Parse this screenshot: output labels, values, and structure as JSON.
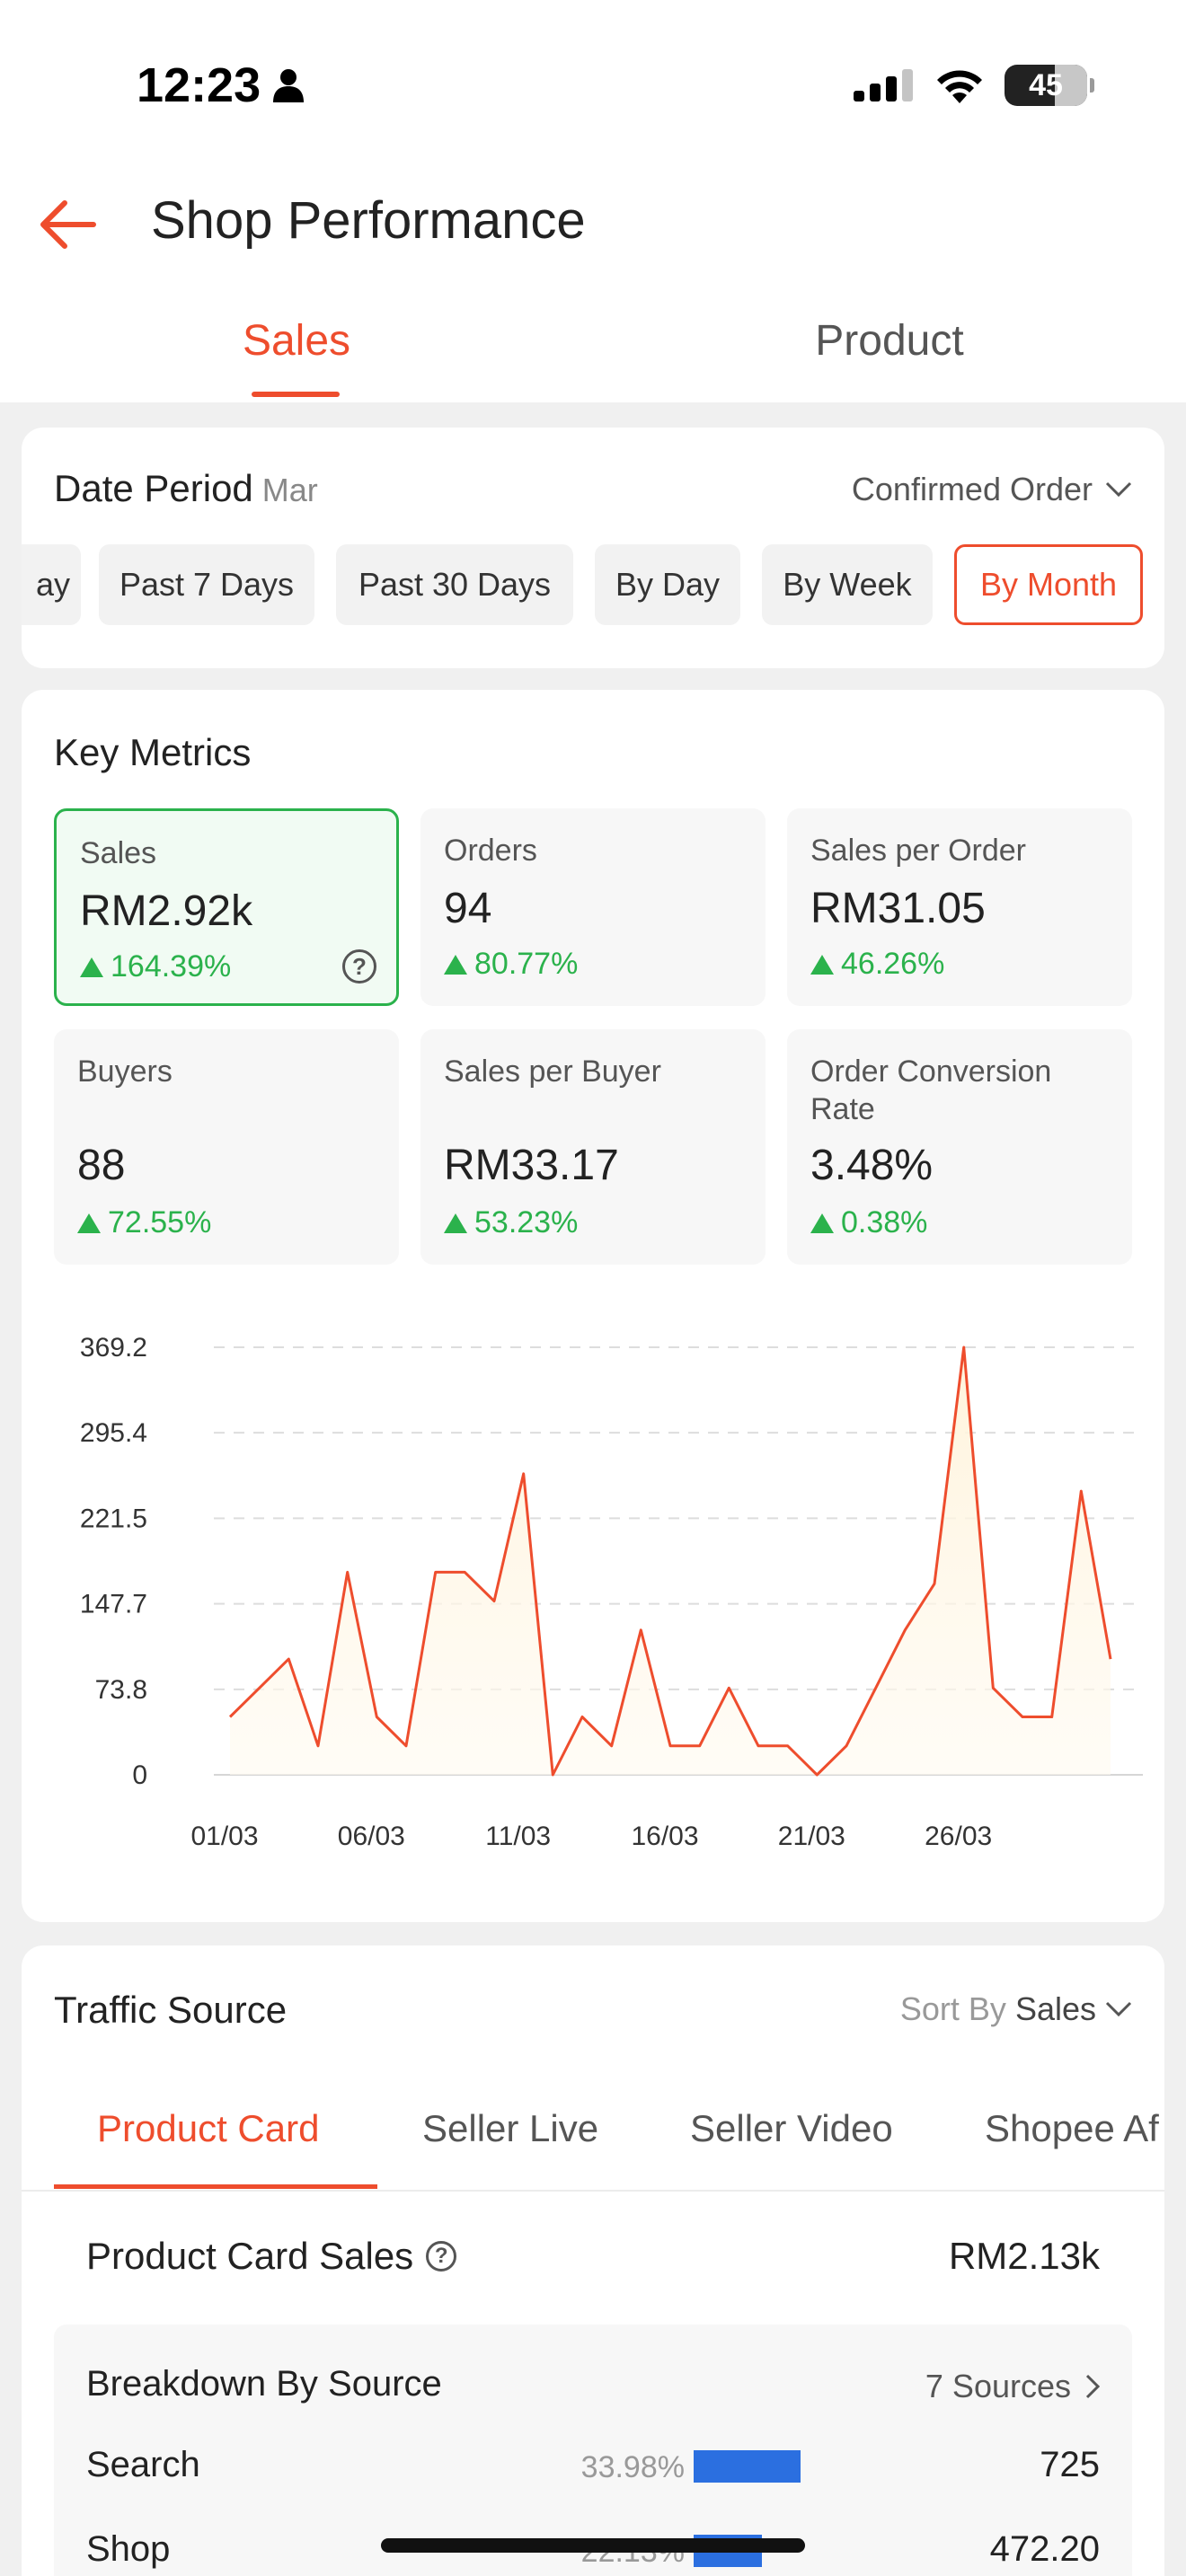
{
  "status_bar": {
    "time": "12:23",
    "battery": "45"
  },
  "header": {
    "title": "Shop Performance"
  },
  "tabs": [
    {
      "label": "Sales",
      "active": true
    },
    {
      "label": "Product",
      "active": false
    }
  ],
  "date_period": {
    "title": "Date Period",
    "month": "Mar",
    "order_type": "Confirmed Order",
    "chips": [
      {
        "label": "ay",
        "active": false
      },
      {
        "label": "Past 7 Days",
        "active": false
      },
      {
        "label": "Past 30 Days",
        "active": false
      },
      {
        "label": "By Day",
        "active": false
      },
      {
        "label": "By Week",
        "active": false
      },
      {
        "label": "By Month",
        "active": true
      }
    ]
  },
  "key_metrics": {
    "title": "Key Metrics",
    "items": [
      {
        "label": "Sales",
        "value": "RM2.92k",
        "change": "164.39%",
        "selected": true
      },
      {
        "label": "Orders",
        "value": "94",
        "change": "80.77%"
      },
      {
        "label": "Sales per Order",
        "value": "RM31.05",
        "change": "46.26%"
      },
      {
        "label": "Buyers",
        "value": "88",
        "change": "72.55%"
      },
      {
        "label": "Sales per Buyer",
        "value": "RM33.17",
        "change": "53.23%"
      },
      {
        "label": "Order Conversion Rate",
        "value": "3.48%",
        "change": "0.38%"
      }
    ]
  },
  "chart_data": {
    "type": "area",
    "x": [
      "01/03",
      "02/03",
      "03/03",
      "04/03",
      "05/03",
      "06/03",
      "07/03",
      "08/03",
      "09/03",
      "10/03",
      "11/03",
      "12/03",
      "13/03",
      "14/03",
      "15/03",
      "16/03",
      "17/03",
      "18/03",
      "19/03",
      "20/03",
      "21/03",
      "22/03",
      "23/03",
      "24/03",
      "25/03",
      "26/03",
      "27/03",
      "28/03",
      "29/03",
      "30/03",
      "31/03"
    ],
    "values": [
      50,
      75,
      100,
      25,
      175,
      50,
      25,
      175,
      175,
      150,
      260,
      0,
      50,
      25,
      125,
      25,
      25,
      75,
      25,
      25,
      0,
      25,
      75,
      125,
      165,
      369.2,
      75,
      50,
      50,
      245,
      100
    ],
    "y_ticks": [
      "369.2",
      "295.4",
      "221.5",
      "147.7",
      "73.8",
      "0"
    ],
    "x_ticks": [
      "01/03",
      "06/03",
      "11/03",
      "16/03",
      "21/03",
      "26/03"
    ],
    "ylim": [
      0,
      369.2
    ],
    "color": "#ee4d2d",
    "grid": true
  },
  "traffic": {
    "title": "Traffic Source",
    "sort_label": "Sort By",
    "sort_value": "Sales",
    "tabs": [
      {
        "label": "Product Card",
        "active": true
      },
      {
        "label": "Seller Live"
      },
      {
        "label": "Seller Video"
      },
      {
        "label": "Shopee Af"
      }
    ],
    "summary_label": "Product Card Sales",
    "summary_value": "RM2.13k",
    "breakdown_title": "Breakdown By Source",
    "sources_label": "7 Sources",
    "rows": [
      {
        "label": "Search",
        "pct": "33.98%",
        "share": 0.55,
        "value": "725"
      },
      {
        "label": "Shop",
        "pct": "22.13%",
        "share": 0.35,
        "value": "472.20"
      }
    ]
  },
  "colors": {
    "accent": "#ee4d2d",
    "positive": "#2bb24c",
    "bar": "#2b6fe0"
  }
}
